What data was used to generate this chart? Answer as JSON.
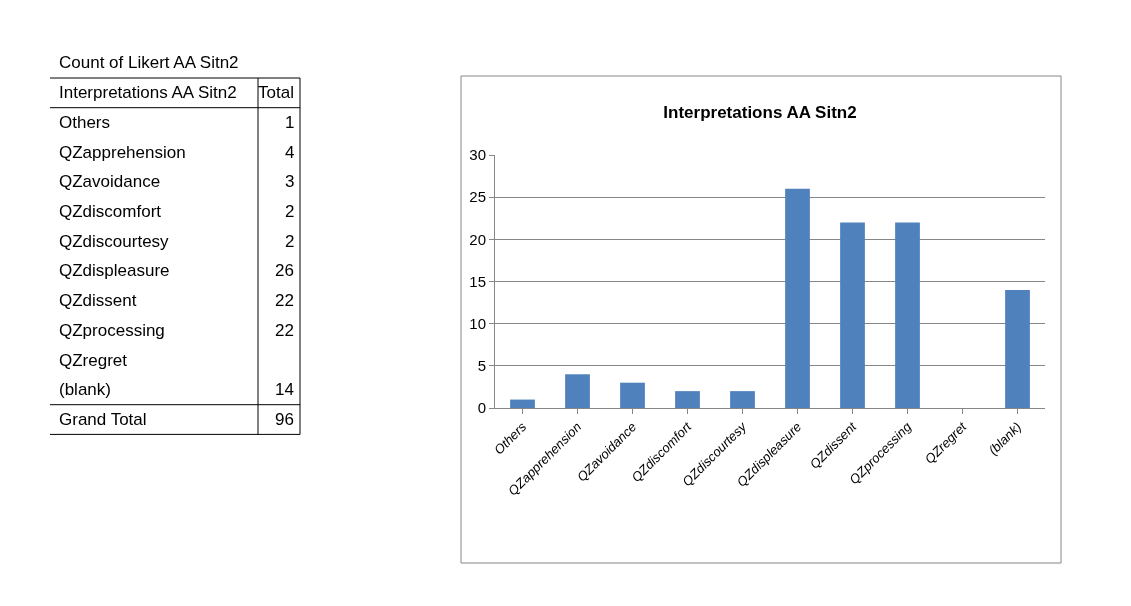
{
  "chart_data": [
    {
      "type": "other",
      "title": "Count of Likert AA Sitn2",
      "categories": [
        "Interpretations AA Sitn2",
        "Others",
        "QZapprehension",
        "QZavoidance",
        "QZdiscomfort",
        "QZdiscourtesy",
        "QZdispleasure",
        "QZdissent",
        "QZprocessing",
        "QZregret",
        "(blank)",
        "Grand Total"
      ],
      "value_labels": [
        "Total",
        "1",
        "4",
        "3",
        "2",
        "2",
        "26",
        "22",
        "22",
        null,
        "14",
        "96"
      ]
    },
    {
      "type": "bar",
      "title": "Interpretations AA Sitn2",
      "categories": [
        "Others",
        "QZapprehension",
        "QZavoidance",
        "QZdiscomfort",
        "QZdiscourtesy",
        "QZdispleasure",
        "QZdissent",
        "QZprocessing",
        "QZregret",
        "(blank)"
      ],
      "values": [
        1,
        4,
        3,
        2,
        2,
        26,
        22,
        22,
        null,
        14
      ],
      "color": "#4f81bd",
      "ylim": [
        0,
        30
      ],
      "yticks": [
        0,
        5,
        10,
        15,
        20,
        25,
        30
      ],
      "grid": "y",
      "legend": false
    }
  ]
}
